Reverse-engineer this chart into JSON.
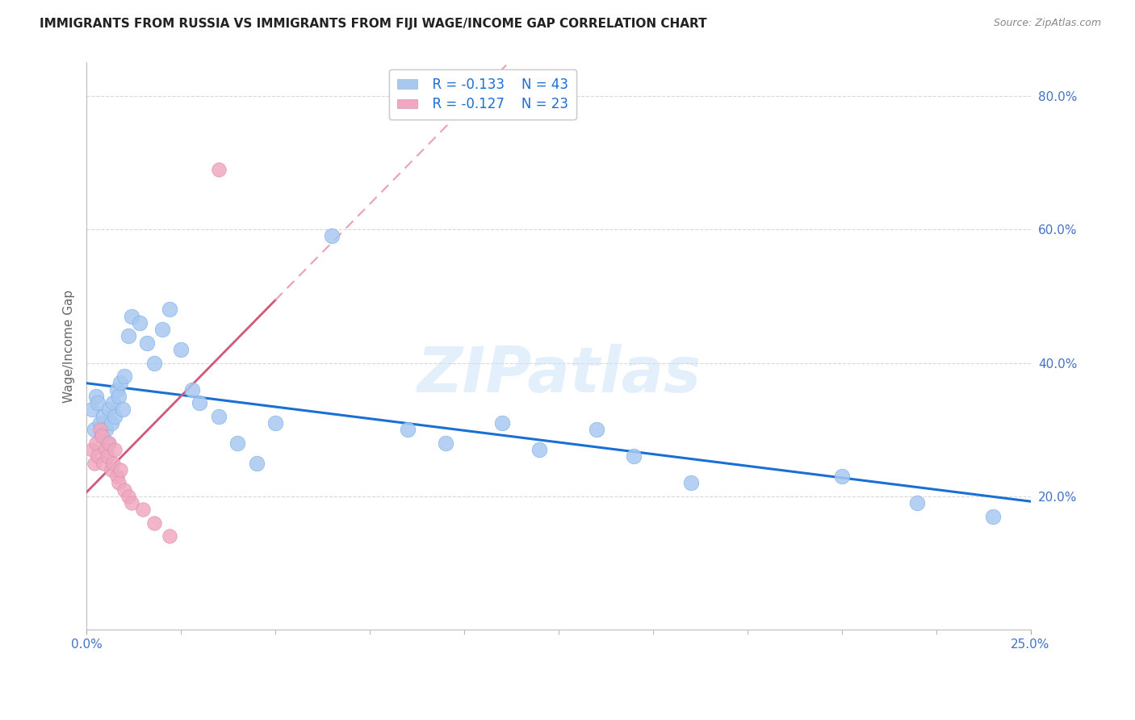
{
  "title": "IMMIGRANTS FROM RUSSIA VS IMMIGRANTS FROM FIJI WAGE/INCOME GAP CORRELATION CHART",
  "source": "Source: ZipAtlas.com",
  "russia_color": "#a8c8f0",
  "fiji_color": "#f0a8c0",
  "russia_line_color": "#1a6fd4",
  "fiji_line_solid_color": "#d05878",
  "fiji_line_dash_color": "#e8a0b8",
  "legend_R_russia": "R = -0.133",
  "legend_N_russia": "N = 43",
  "legend_R_fiji": "R = -0.127",
  "legend_N_fiji": "N = 23",
  "russia_x": [
    0.15,
    0.2,
    0.25,
    0.3,
    0.35,
    0.4,
    0.45,
    0.5,
    0.55,
    0.6,
    0.65,
    0.7,
    0.75,
    0.8,
    0.85,
    0.9,
    0.95,
    1.0,
    1.1,
    1.2,
    1.4,
    1.6,
    1.8,
    2.0,
    2.2,
    2.5,
    2.8,
    3.0,
    3.5,
    4.0,
    4.5,
    5.0,
    6.5,
    8.5,
    9.5,
    11.0,
    12.0,
    13.5,
    14.5,
    16.0,
    20.0,
    22.0,
    24.0
  ],
  "russia_y": [
    33,
    30,
    35,
    34,
    31,
    29,
    32,
    30,
    28,
    33,
    31,
    34,
    32,
    36,
    35,
    37,
    33,
    38,
    44,
    47,
    46,
    43,
    40,
    45,
    48,
    42,
    36,
    34,
    32,
    28,
    25,
    31,
    59,
    30,
    28,
    31,
    27,
    30,
    26,
    22,
    23,
    19,
    17
  ],
  "fiji_x": [
    0.15,
    0.2,
    0.25,
    0.3,
    0.35,
    0.4,
    0.45,
    0.5,
    0.55,
    0.6,
    0.65,
    0.7,
    0.75,
    0.8,
    0.85,
    0.9,
    1.0,
    1.1,
    1.2,
    1.5,
    1.8,
    2.2,
    3.5
  ],
  "fiji_y": [
    27,
    25,
    28,
    26,
    30,
    29,
    25,
    27,
    26,
    28,
    24,
    25,
    27,
    23,
    22,
    24,
    21,
    20,
    19,
    18,
    16,
    14,
    69
  ],
  "fiji_solid_end_x": 5.0,
  "xlim_min": 0.0,
  "xlim_max": 25.0,
  "ylim_min": 0.0,
  "ylim_max": 85.0,
  "right_yticks": [
    20.0,
    40.0,
    60.0,
    80.0
  ],
  "watermark": "ZIPatlas",
  "background_color": "#ffffff",
  "grid_color": "#d8d8d8"
}
